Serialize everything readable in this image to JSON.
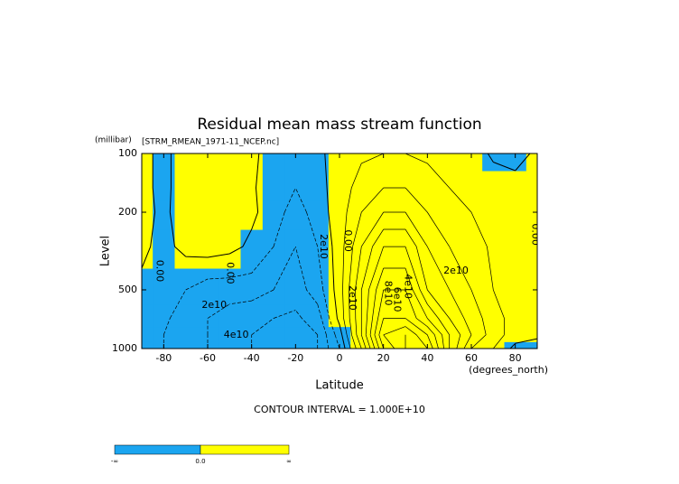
{
  "chart_data": {
    "type": "contour",
    "title": "Residual mean mass stream function",
    "subtitle": "[STRM_RMEAN_1971-11_NCEP.nc]",
    "y_units": "(millibar)",
    "y_label": "Level",
    "x_units": "(degrees_north)",
    "x_label": "Latitude",
    "contour_interval_label": "CONTOUR INTERVAL = 1.000E+10",
    "xlim": [
      -90,
      90
    ],
    "ylim": [
      1000,
      100
    ],
    "log_y": true,
    "xticks": [
      -80,
      -60,
      -40,
      -20,
      0,
      20,
      40,
      60,
      80
    ],
    "yticks": [
      100,
      200,
      500,
      1000
    ],
    "negative_color": "#1ba5f0",
    "positive_color": "#ffff00",
    "x": [
      -90,
      -80,
      -70,
      -60,
      -50,
      -40,
      -30,
      -20,
      -10,
      0,
      10,
      20,
      30,
      40,
      50,
      60,
      70,
      80,
      90
    ],
    "y": [
      1000,
      850,
      700,
      500,
      300,
      200,
      150,
      100
    ],
    "z": [
      [
        -5000000000.0,
        -10000000000.0,
        -15000000000.0,
        -20000000000.0,
        -25000000000.0,
        -30000000000.0,
        -35000000000.0,
        -40000000000.0,
        -30000000000.0,
        -10000000000.0,
        30000000000.0,
        80000000000.0,
        100000000000.0,
        90000000000.0,
        50000000000.0,
        20000000000.0,
        10000000000.0,
        -3000000000.0,
        -5000000000.0
      ],
      [
        -5000000000.0,
        -10000000000.0,
        -15000000000.0,
        -20000000000.0,
        -25000000000.0,
        -30000000000.0,
        -35000000000.0,
        -40000000000.0,
        -30000000000.0,
        -5000000000.0,
        40000000000.0,
        90000000000.0,
        100000000000.0,
        80000000000.0,
        50000000000.0,
        30000000000.0,
        15000000000.0,
        5000000000.0,
        2000000000.0
      ],
      [
        -3000000000.0,
        -8000000000.0,
        -15000000000.0,
        -20000000000.0,
        -25000000000.0,
        -28000000000.0,
        -30000000000.0,
        -32000000000.0,
        -25000000000.0,
        3000000000.0,
        40000000000.0,
        80000000000.0,
        80000000000.0,
        60000000000.0,
        40000000000.0,
        25000000000.0,
        15000000000.0,
        5000000000.0,
        2000000000.0
      ],
      [
        -2000000000.0,
        -5000000000.0,
        -10000000000.0,
        -15000000000.0,
        -15000000000.0,
        -15000000000.0,
        -20000000000.0,
        -25000000000.0,
        -15000000000.0,
        5000000000.0,
        40000000000.0,
        70000000000.0,
        70000000000.0,
        40000000000.0,
        30000000000.0,
        20000000000.0,
        10000000000.0,
        5000000000.0,
        1000000000.0
      ],
      [
        2000000000.0,
        -3000000000.0,
        3000000000.0,
        5000000000.0,
        3000000000.0,
        -2000000000.0,
        -10000000000.0,
        -20000000000.0,
        -10000000000.0,
        5000000000.0,
        30000000000.0,
        50000000000.0,
        50000000000.0,
        30000000000.0,
        20000000000.0,
        15000000000.0,
        8000000000.0,
        3000000000.0,
        1000000000.0
      ],
      [
        3000000000.0,
        -2000000000.0,
        5000000000.0,
        6000000000.0,
        4000000000.0,
        2000000000.0,
        -5000000000.0,
        -15000000000.0,
        -5000000000.0,
        5000000000.0,
        20000000000.0,
        30000000000.0,
        30000000000.0,
        20000000000.0,
        15000000000.0,
        10000000000.0,
        5000000000.0,
        2000000000.0,
        1000000000.0
      ],
      [
        2000000000.0,
        -2000000000.0,
        4000000000.0,
        5000000000.0,
        3000000000.0,
        1000000000.0,
        -4000000000.0,
        -10000000000.0,
        -3000000000.0,
        4000000000.0,
        15000000000.0,
        20000000000.0,
        20000000000.0,
        15000000000.0,
        10000000000.0,
        6000000000.0,
        3000000000.0,
        1000000000.0,
        500000000.0
      ],
      [
        1000000000.0,
        -1000000000.0,
        2000000000.0,
        3000000000.0,
        2000000000.0,
        1000000000.0,
        -2000000000.0,
        -5000000000.0,
        -1000000000.0,
        2000000000.0,
        8000000000.0,
        10000000000.0,
        10000000000.0,
        8000000000.0,
        5000000000.0,
        3000000000.0,
        -1000000000.0,
        -1000000000.0,
        500000000.0
      ]
    ],
    "contour_levels": [
      -40000000000.0,
      -30000000000.0,
      -20000000000.0,
      -10000000000.0,
      0,
      10000000000.0,
      20000000000.0,
      30000000000.0,
      40000000000.0,
      50000000000.0,
      60000000000.0,
      70000000000.0,
      80000000000.0,
      90000000000.0,
      100000000000.0
    ],
    "contour_labels": [
      {
        "text": "0.00",
        "x": -82,
        "y": 400,
        "orientation": "vertical"
      },
      {
        "text": "0.00",
        "x": -50,
        "y": 410,
        "orientation": "vertical"
      },
      {
        "text": "2e10",
        "x": -57,
        "y": 600,
        "orientation": "horizontal"
      },
      {
        "text": "4e10",
        "x": -47,
        "y": 850,
        "orientation": "horizontal"
      },
      {
        "text": "2e10",
        "x": -7.5,
        "y": 300,
        "orientation": "vertical"
      },
      {
        "text": "0.00",
        "x": 3.6,
        "y": 280,
        "orientation": "vertical"
      },
      {
        "text": "2e10",
        "x": 5.7,
        "y": 550,
        "orientation": "vertical"
      },
      {
        "text": "8e10",
        "x": 22,
        "y": 520,
        "orientation": "vertical"
      },
      {
        "text": "6e10",
        "x": 26,
        "y": 560,
        "orientation": "vertical"
      },
      {
        "text": "4e10",
        "x": 31,
        "y": 480,
        "orientation": "vertical"
      },
      {
        "text": "2e10",
        "x": 53,
        "y": 400,
        "orientation": "horizontal"
      },
      {
        "text": "0.00",
        "x": 89,
        "y": 260,
        "orientation": "vertical"
      }
    ],
    "colorbar_labels": [
      "-∞",
      "0.0",
      "∞"
    ]
  }
}
